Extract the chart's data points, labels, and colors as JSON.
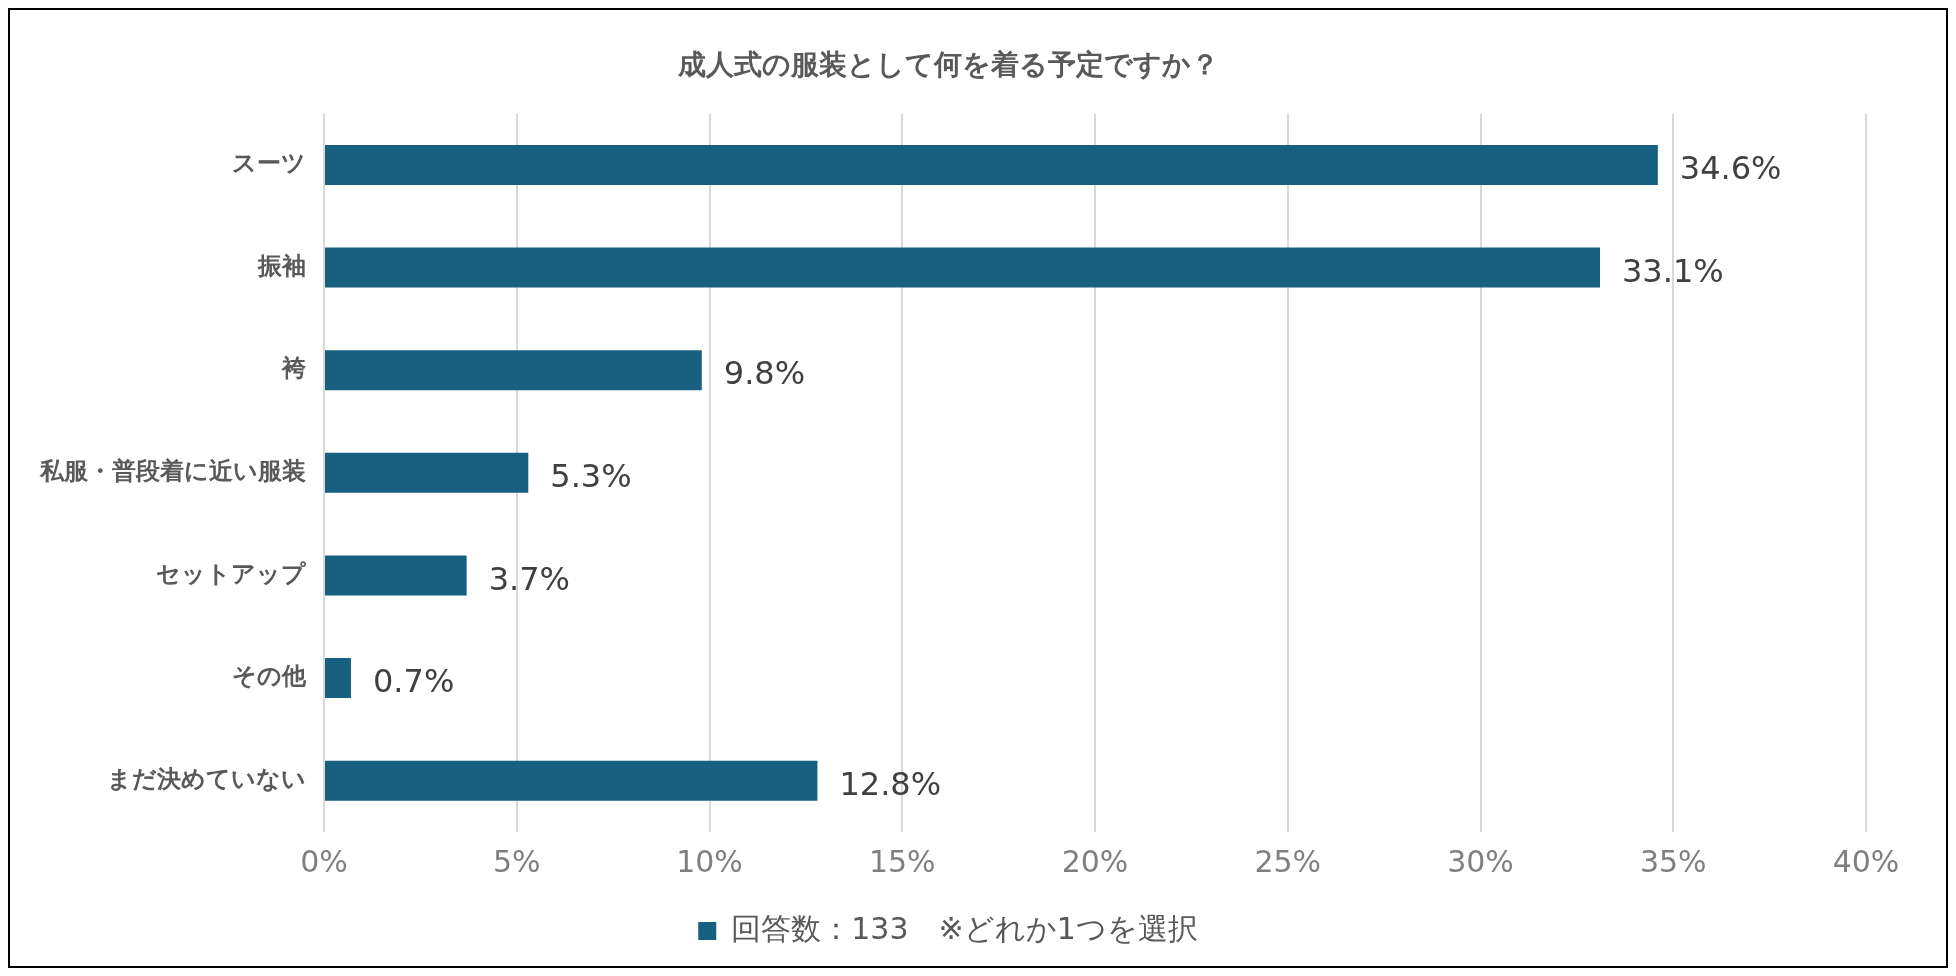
{
  "chart_data": {
    "type": "bar",
    "orientation": "horizontal",
    "title": "成人式の服装として何を着る予定ですか？",
    "categories": [
      "スーツ",
      "振袖",
      "袴",
      "私服・普段着に近い服装",
      "セットアップ",
      "その他",
      "まだ決めていない"
    ],
    "series": [
      {
        "name": "回答数：133　※どれか1つを選択",
        "color": "#17607f",
        "values": [
          34.6,
          33.1,
          9.8,
          5.3,
          3.7,
          0.7,
          12.8
        ],
        "value_labels": [
          "34.6%",
          "33.1%",
          "9.8%",
          "5.3%",
          "3.7%",
          "0.7%",
          "12.8%"
        ]
      }
    ],
    "xlim": [
      0,
      40
    ],
    "xticks": [
      {
        "value": 0,
        "label": "0%"
      },
      {
        "value": 5,
        "label": "5%"
      },
      {
        "value": 10,
        "label": "10%"
      },
      {
        "value": 15,
        "label": "15%"
      },
      {
        "value": 20,
        "label": "20%"
      },
      {
        "value": 25,
        "label": "25%"
      },
      {
        "value": 30,
        "label": "30%"
      },
      {
        "value": 35,
        "label": "35%"
      },
      {
        "value": 40,
        "label": "40%"
      }
    ],
    "grid": "x",
    "legend": "bottom"
  }
}
